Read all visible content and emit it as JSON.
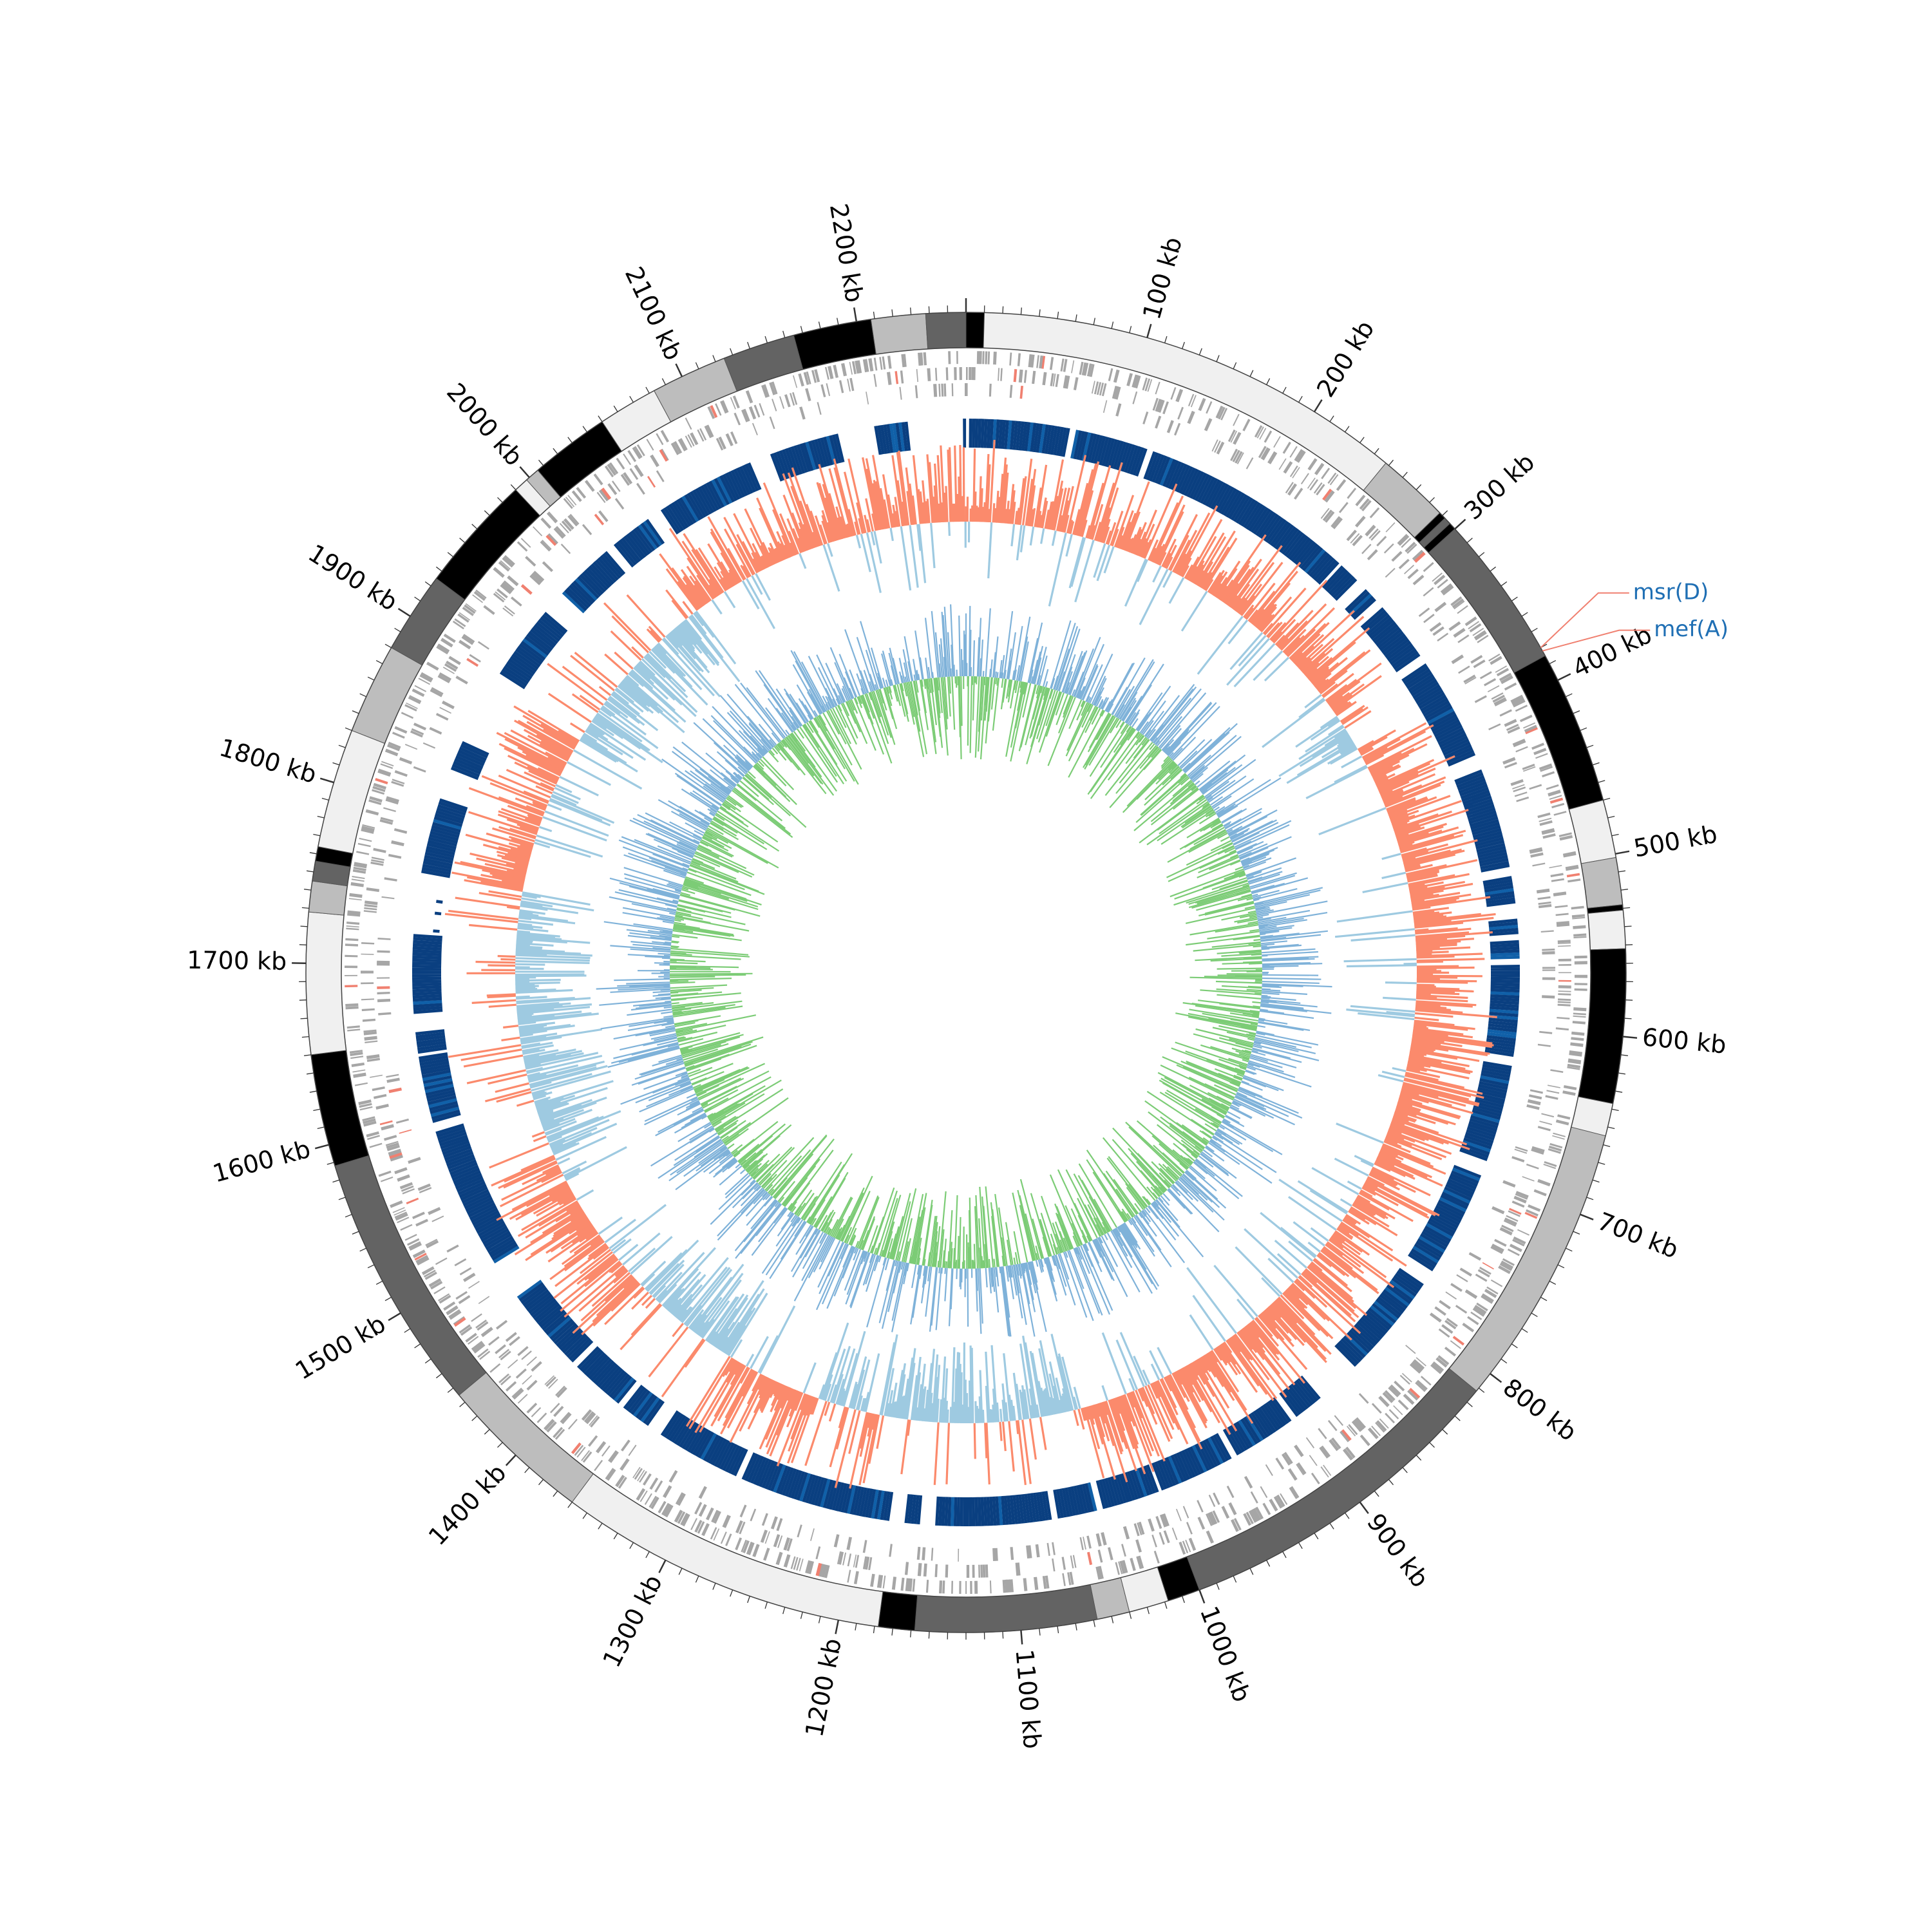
{
  "genome": {
    "length_kb": 2260,
    "tick_label_unit": "kb",
    "tick_label_step_kb": 100
  },
  "tick_labels": [
    "100 kb",
    "200 kb",
    "300 kb",
    "400 kb",
    "500 kb",
    "600 kb",
    "700 kb",
    "800 kb",
    "900 kb",
    "1000 kb",
    "1100 kb",
    "1200 kb",
    "1300 kb",
    "1400 kb",
    "1500 kb",
    "1600 kb",
    "1700 kb",
    "1800 kb",
    "1900 kb",
    "2000 kb",
    "2100 kb",
    "2200 kb"
  ],
  "contig_ring": {
    "palette": [
      "#f0f0f0",
      "#bdbdbd",
      "#636363",
      "#000000"
    ],
    "segments_kb": [
      [
        0,
        5,
        3
      ],
      [
        5,
        248,
        0
      ],
      [
        248,
        288,
        1
      ],
      [
        288,
        292,
        3
      ],
      [
        292,
        296,
        2
      ],
      [
        296,
        300,
        3
      ],
      [
        300,
        385,
        2
      ],
      [
        385,
        470,
        3
      ],
      [
        470,
        502,
        0
      ],
      [
        502,
        528,
        1
      ],
      [
        528,
        531,
        3
      ],
      [
        531,
        552,
        0
      ],
      [
        552,
        637,
        3
      ],
      [
        637,
        655,
        0
      ],
      [
        655,
        812,
        1
      ],
      [
        812,
        1000,
        2
      ],
      [
        1000,
        1018,
        3
      ],
      [
        1018,
        1040,
        0
      ],
      [
        1040,
        1058,
        1
      ],
      [
        1058,
        1158,
        2
      ],
      [
        1158,
        1178,
        3
      ],
      [
        1178,
        1360,
        0
      ],
      [
        1360,
        1445,
        1
      ],
      [
        1445,
        1588,
        2
      ],
      [
        1588,
        1650,
        3
      ],
      [
        1650,
        1728,
        0
      ],
      [
        1728,
        1745,
        1
      ],
      [
        1745,
        1756,
        2
      ],
      [
        1756,
        1764,
        3
      ],
      [
        1764,
        1830,
        0
      ],
      [
        1830,
        1880,
        1
      ],
      [
        1880,
        1925,
        2
      ],
      [
        1925,
        1990,
        3
      ],
      [
        1990,
        1998,
        0
      ],
      [
        1998,
        2006,
        1
      ],
      [
        2006,
        2050,
        3
      ],
      [
        2050,
        2083,
        0
      ],
      [
        2083,
        2125,
        1
      ],
      [
        2125,
        2165,
        2
      ],
      [
        2165,
        2208,
        3
      ],
      [
        2208,
        2238,
        1
      ],
      [
        2238,
        2270,
        2
      ],
      [
        2270,
        2274,
        3
      ]
    ]
  },
  "annotated_genes": [
    {
      "name": "msr(D)",
      "position_kb": 380,
      "color": "#1f6fb4"
    },
    {
      "name": "mef(A)",
      "position_kb": 382,
      "color": "#1f6fb4"
    }
  ],
  "colors": {
    "gene_features": "#a6a6a6",
    "highlight_features": "#f08070",
    "blast_hits": "#0a3f80",
    "blast_hits_alt": "#1060a8",
    "gc_content_positive": "#fb8a6c",
    "gc_content_negative": "#9ecae1",
    "gc_skew_positive": "#7ccc76",
    "gc_skew_negative": "#7fb2d9",
    "gene_label_line": "#f08070"
  }
}
